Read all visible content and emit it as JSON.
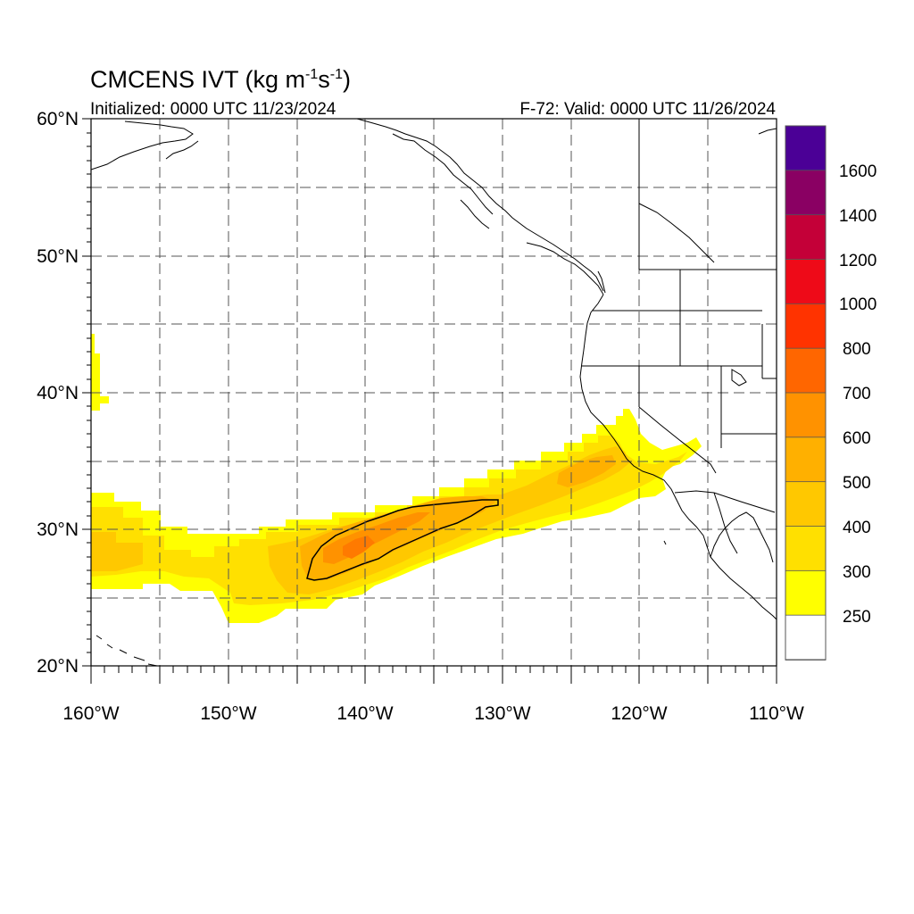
{
  "title": {
    "main": "CMCENS IVT (kg m",
    "sup1": "-1",
    "mid": "s",
    "sup2": "-1",
    "close": ")"
  },
  "subtitle_left": "Initialized: 0000 UTC 11/23/2024",
  "subtitle_right": "F-72: Valid: 0000 UTC 11/26/2024",
  "map": {
    "lon_range": [
      -160,
      -110
    ],
    "lat_range": [
      20,
      60
    ],
    "grid": "dashed every 5 degrees",
    "lat_labels": [
      "60°N",
      "50°N",
      "40°N",
      "30°N",
      "20°N"
    ],
    "lon_labels": [
      "160°W",
      "150°W",
      "140°W",
      "130°W",
      "120°W",
      "110°W"
    ]
  },
  "colorbar": {
    "labels": [
      "1600",
      "1400",
      "1200",
      "1000",
      "800",
      "700",
      "600",
      "500",
      "400",
      "300",
      "250"
    ],
    "colors_top_to_bottom": [
      "#4b0096",
      "#8a0063",
      "#c40038",
      "#ee0a18",
      "#ff3300",
      "#ff6600",
      "#ff9200",
      "#ffb000",
      "#ffc800",
      "#ffe000",
      "#ffff00",
      "#ffffff"
    ]
  },
  "chart_data": {
    "type": "heatmap",
    "variable": "IVT",
    "units": "kg m-1 s-1",
    "levels": [
      250,
      300,
      400,
      500,
      600,
      700,
      800,
      1000,
      1200,
      1400,
      1600
    ],
    "features": [
      {
        "level": 250,
        "region": "atmospheric river band from ~160W 29N to ~116W 35N"
      },
      {
        "level": 400,
        "region": "core band from ~145W 27N to ~122W 35N"
      },
      {
        "level": 500,
        "region": "maximum near 141W 28N, contoured ~144W 26.5N to ~130W 32N"
      }
    ]
  }
}
